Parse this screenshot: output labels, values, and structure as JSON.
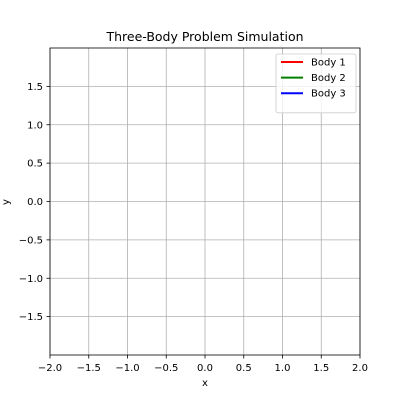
{
  "chart_data": {
    "type": "line",
    "title": "Three-Body Problem Simulation",
    "xlabel": "x",
    "ylabel": "y",
    "xlim": [
      -2.0,
      2.0
    ],
    "ylim": [
      -2.0,
      2.0
    ],
    "x_ticks": [
      -2.0,
      -1.5,
      -1.0,
      -0.5,
      0.0,
      0.5,
      1.0,
      1.5,
      2.0
    ],
    "x_tick_labels": [
      "−2.0",
      "−1.5",
      "−1.0",
      "−0.5",
      "0.0",
      "0.5",
      "1.0",
      "1.5",
      "2.0"
    ],
    "y_ticks": [
      -1.5,
      -1.0,
      -0.5,
      0.0,
      0.5,
      1.0,
      1.5
    ],
    "y_tick_labels": [
      "−1.5",
      "−1.0",
      "−0.5",
      "0.0",
      "0.5",
      "1.0",
      "1.5"
    ],
    "grid": true,
    "legend_position": "top-right",
    "series": [
      {
        "name": "Body 1",
        "color": "#ff0000",
        "x": [],
        "y": []
      },
      {
        "name": "Body 2",
        "color": "#008000",
        "x": [],
        "y": []
      },
      {
        "name": "Body 3",
        "color": "#0000ff",
        "x": [],
        "y": []
      }
    ]
  }
}
